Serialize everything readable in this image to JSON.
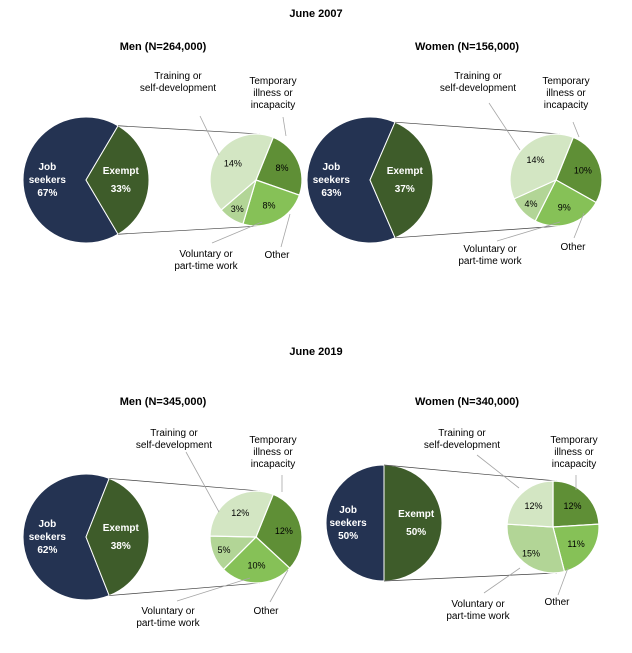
{
  "colors": {
    "job_seekers": "#243352",
    "exempt": "#3e5c2a",
    "temporary_illness": "#5f8f36",
    "other": "#86c157",
    "voluntary_work": "#b2d596",
    "training": "#d3e6c3"
  },
  "chart_data": [
    {
      "type": "pie",
      "period": "June 2007",
      "title": "Men (N=264,000)",
      "main": [
        {
          "name": "Job seekers",
          "label": "Job\nseekers\n67%",
          "value": 67
        },
        {
          "name": "Exempt",
          "label": "Exempt\n33%",
          "value": 33
        }
      ],
      "breakdown": [
        {
          "name": "Temporary illness or incapacity",
          "value": 8,
          "label": "8%"
        },
        {
          "name": "Other",
          "value": 8,
          "label": "8%"
        },
        {
          "name": "Voluntary or part-time work",
          "value": 3,
          "label": "3%"
        },
        {
          "name": "Training or self-development",
          "value": 14,
          "label": "14%"
        }
      ],
      "callouts": {
        "training": "Training or\nself-development",
        "temporary": "Temporary\nillness or\nincapacity",
        "voluntary": "Voluntary or\npart-time work",
        "other": "Other"
      }
    },
    {
      "type": "pie",
      "period": "June 2007",
      "title": "Women (N=156,000)",
      "main": [
        {
          "name": "Job seekers",
          "label": "Job\nseekers\n63%",
          "value": 63
        },
        {
          "name": "Exempt",
          "label": "Exempt\n37%",
          "value": 37
        }
      ],
      "breakdown": [
        {
          "name": "Temporary illness or incapacity",
          "value": 10,
          "label": "10%"
        },
        {
          "name": "Other",
          "value": 9,
          "label": "9%"
        },
        {
          "name": "Voluntary or part-time work",
          "value": 4,
          "label": "4%"
        },
        {
          "name": "Training or self-development",
          "value": 14,
          "label": "14%"
        }
      ],
      "callouts": {
        "training": "Training or\nself-development",
        "temporary": "Temporary\nillness or\nincapacity",
        "voluntary": "Voluntary or\npart-time work",
        "other": "Other"
      }
    },
    {
      "type": "pie",
      "period": "June 2019",
      "title": "Men (N=345,000)",
      "main": [
        {
          "name": "Job seekers",
          "label": "Job\nseekers\n62%",
          "value": 62
        },
        {
          "name": "Exempt",
          "label": "Exempt\n38%",
          "value": 38
        }
      ],
      "breakdown": [
        {
          "name": "Temporary illness or incapacity",
          "value": 12,
          "label": "12%"
        },
        {
          "name": "Other",
          "value": 10,
          "label": "10%"
        },
        {
          "name": "Voluntary or part-time work",
          "value": 5,
          "label": "5%"
        },
        {
          "name": "Training or self-development",
          "value": 12,
          "label": "12%"
        }
      ],
      "callouts": {
        "training": "Training or\nself-development",
        "temporary": "Temporary\nillness or\nincapacity",
        "voluntary": "Voluntary or\npart-time work",
        "other": "Other"
      }
    },
    {
      "type": "pie",
      "period": "June 2019",
      "title": "Women (N=340,000)",
      "main": [
        {
          "name": "Job seekers",
          "label": "Job\nseekers\n50%",
          "value": 50
        },
        {
          "name": "Exempt",
          "label": "Exempt\n50%",
          "value": 50
        }
      ],
      "breakdown": [
        {
          "name": "Temporary illness or incapacity",
          "value": 12,
          "label": "12%"
        },
        {
          "name": "Other",
          "value": 11,
          "label": "11%"
        },
        {
          "name": "Voluntary or part-time work",
          "value": 15,
          "label": "15%"
        },
        {
          "name": "Training or self-development",
          "value": 12,
          "label": "12%"
        }
      ],
      "callouts": {
        "training": "Training or\nself-development",
        "temporary": "Temporary\nillness or\nincapacity",
        "voluntary": "Voluntary or\npart-time work",
        "other": "Other"
      }
    }
  ]
}
